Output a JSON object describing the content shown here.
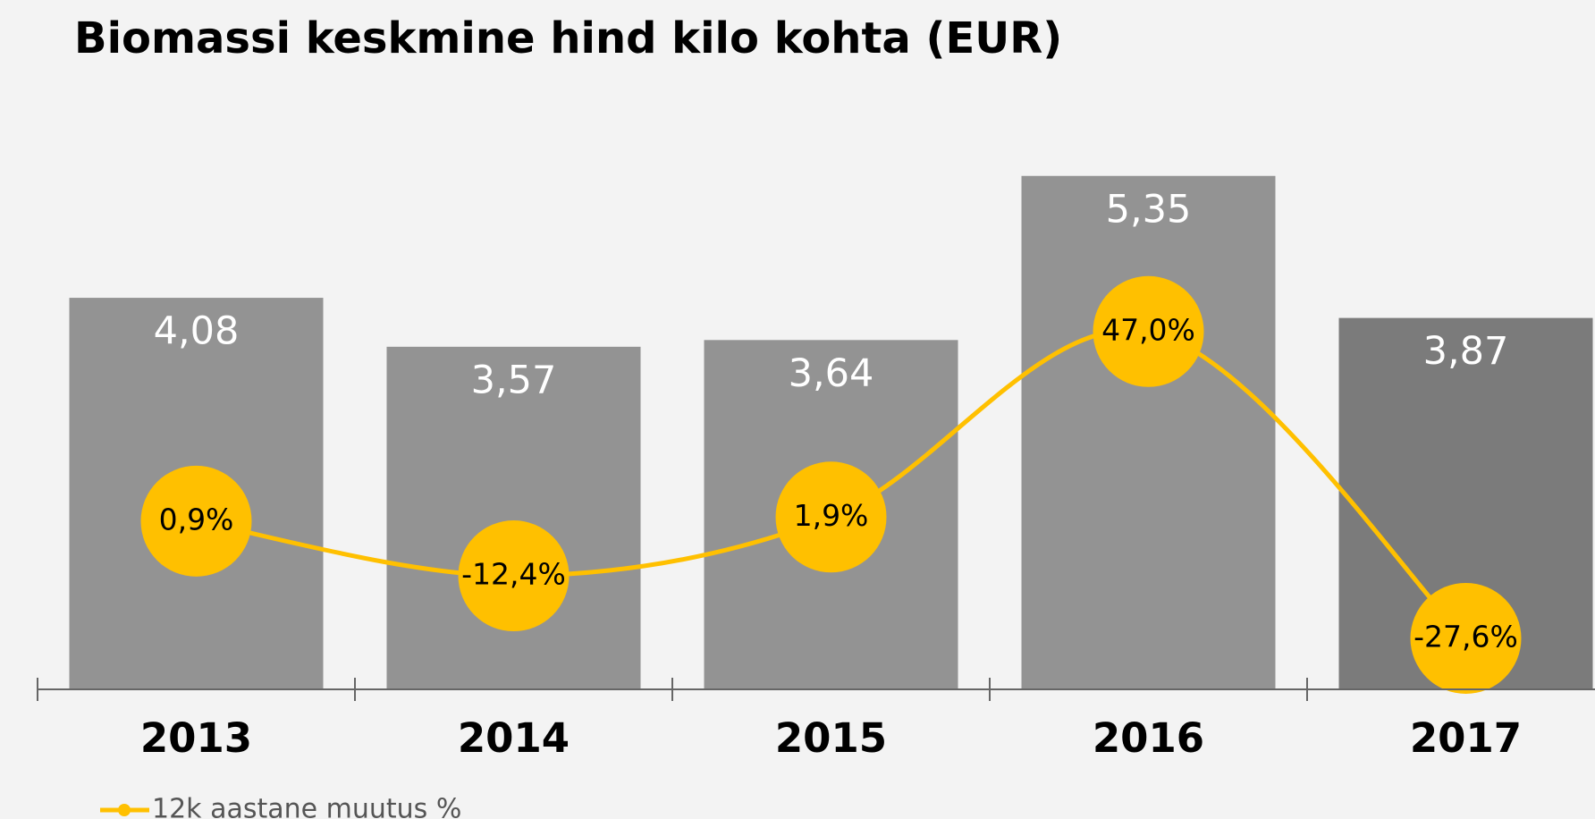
{
  "chart_data": {
    "type": "bar",
    "title": "Biomassi keskmine hind kilo kohta (EUR)",
    "categories": [
      "2013",
      "2014",
      "2015",
      "2016",
      "2017"
    ],
    "series": [
      {
        "type": "bar",
        "values": [
          4.08,
          3.57,
          3.64,
          5.35,
          3.87
        ],
        "value_labels": [
          "4,08",
          "3,57",
          "3,64",
          "5,35",
          "3,87"
        ],
        "colors": [
          "#939393",
          "#939393",
          "#939393",
          "#939393",
          "#7b7b7b"
        ]
      },
      {
        "type": "line",
        "name": "12k aastane muutus %",
        "axis": "y2",
        "color": "#ffc000",
        "values": [
          0.9,
          -12.4,
          1.9,
          47.0,
          -27.6
        ],
        "value_labels": [
          "0,9%",
          "-12,4%",
          "1,9%",
          "47,0%",
          "-27,6%"
        ]
      }
    ],
    "ylim": [
      0,
      6
    ],
    "y2lim": [
      -40,
      100
    ],
    "legend": "bottom-left"
  }
}
